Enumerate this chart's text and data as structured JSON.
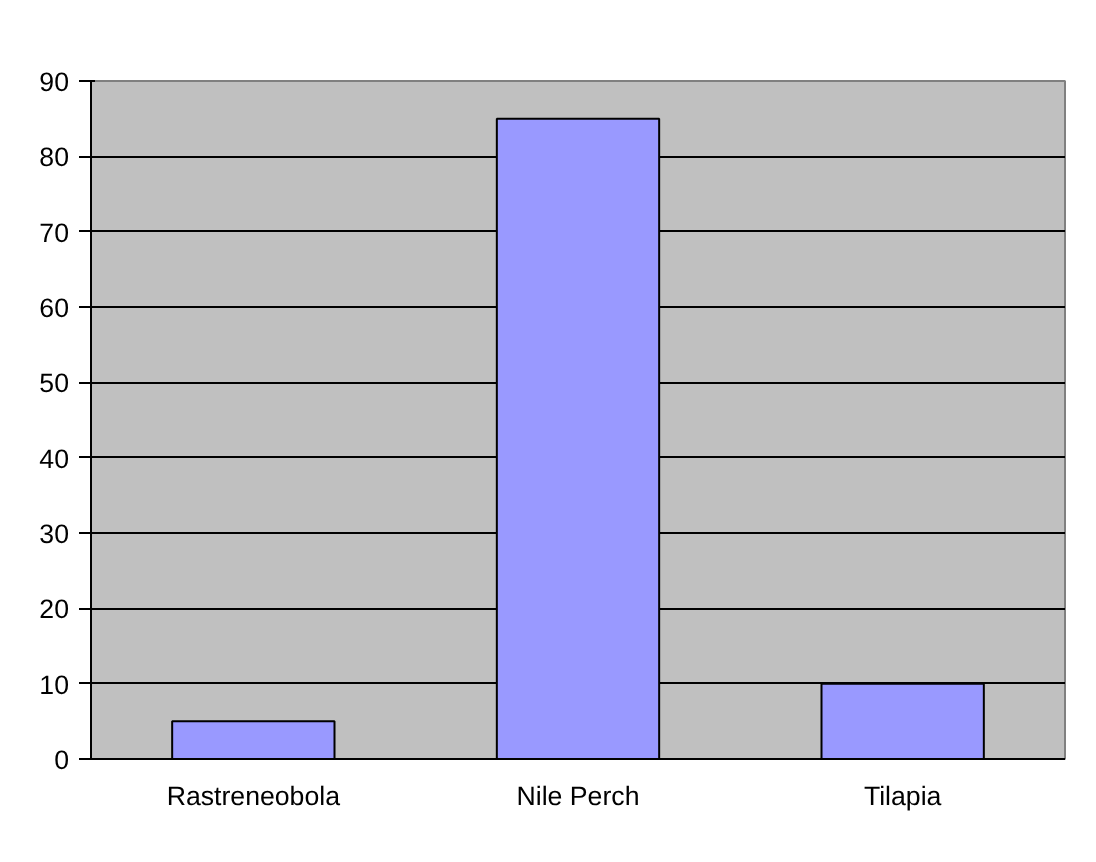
{
  "chart_data": {
    "type": "bar",
    "categories": [
      "Rastreneobola",
      "Nile Perch",
      "Tilapia"
    ],
    "values": [
      5,
      85,
      10
    ],
    "color": "#9999ff",
    "ylim": [
      0,
      90
    ],
    "yticks": [
      0,
      10,
      20,
      30,
      40,
      50,
      60,
      70,
      80,
      90
    ],
    "grid": "y"
  }
}
